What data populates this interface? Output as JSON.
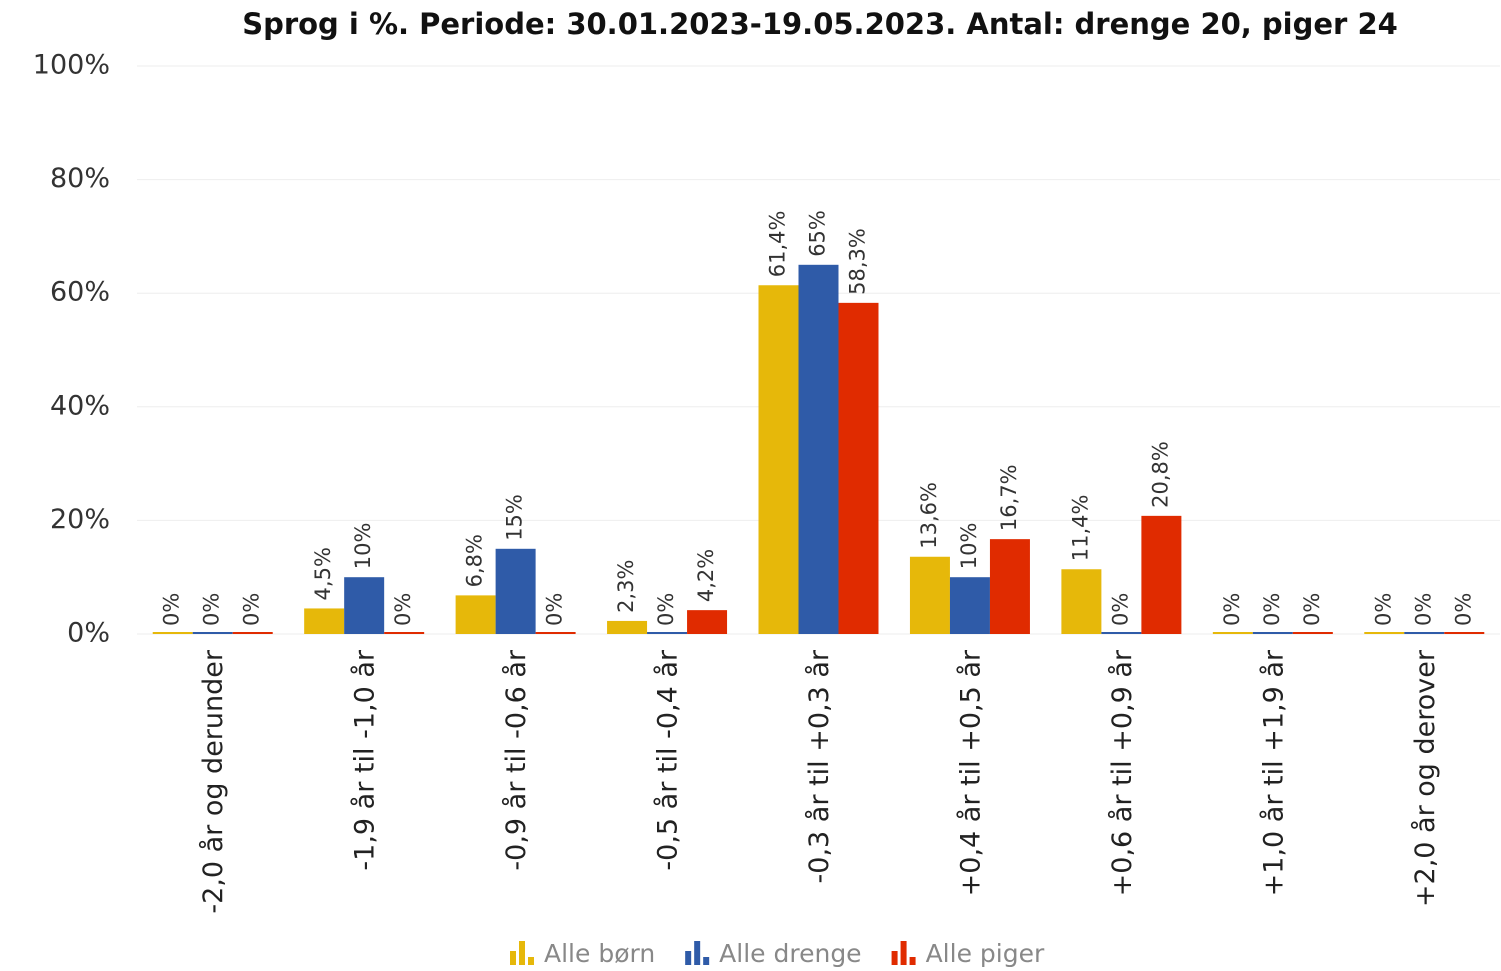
{
  "chart_data": {
    "type": "bar",
    "title": "Sprog i %. Periode: 30.01.2023-19.05.2023. Antal: drenge 20, piger 24",
    "categories": [
      "-2,0 år og derunder",
      "-1,9 år til -1,0 år",
      "-0,9 år til -0,6 år",
      "-0,5 år til -0,4 år",
      "-0,3 år til +0,3 år",
      "+0,4 år til +0,5 år",
      "+0,6 år til +0,9 år",
      "+1,0 år til +1,9 år",
      "+2,0 år og derover"
    ],
    "series": [
      {
        "name": "Alle børn",
        "color": "#e6b80a",
        "values": [
          0,
          4.5,
          6.8,
          2.3,
          61.4,
          13.6,
          11.4,
          0,
          0
        ],
        "value_labels": [
          "0%",
          "4,5%",
          "6,8%",
          "2,3%",
          "61,4%",
          "13,6%",
          "11,4%",
          "0%",
          "0%"
        ]
      },
      {
        "name": "Alle drenge",
        "color": "#2f5ba8",
        "values": [
          0,
          10,
          15,
          0,
          65,
          10,
          0,
          0,
          0
        ],
        "value_labels": [
          "0%",
          "10%",
          "15%",
          "0%",
          "65%",
          "10%",
          "0%",
          "0%",
          "0%"
        ]
      },
      {
        "name": "Alle piger",
        "color": "#e02b00",
        "values": [
          0,
          0,
          0,
          4.2,
          58.3,
          16.7,
          20.8,
          0,
          0
        ],
        "value_labels": [
          "0%",
          "0%",
          "0%",
          "4,2%",
          "58,3%",
          "16,7%",
          "20,8%",
          "0%",
          "0%"
        ]
      }
    ],
    "ylim": [
      0,
      100
    ],
    "yticks": [
      {
        "value": 0,
        "label": "0%"
      },
      {
        "value": 20,
        "label": "20%"
      },
      {
        "value": 40,
        "label": "40%"
      },
      {
        "value": 60,
        "label": "60%"
      },
      {
        "value": 80,
        "label": "80%"
      },
      {
        "value": 100,
        "label": "100%"
      }
    ],
    "grid": true,
    "legend": "bottom"
  }
}
